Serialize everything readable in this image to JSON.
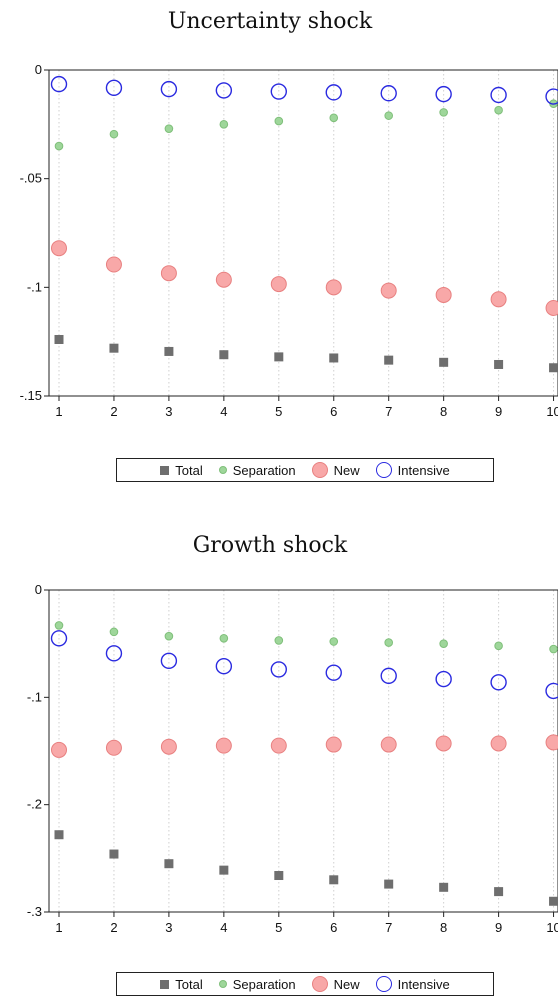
{
  "chart_data": [
    {
      "type": "scatter",
      "title": "Uncertainty shock",
      "xlabel": "",
      "ylabel": "",
      "x": [
        1,
        2,
        3,
        4,
        5,
        6,
        7,
        8,
        9,
        10
      ],
      "xticks": [
        "1",
        "2",
        "3",
        "4",
        "5",
        "6",
        "7",
        "8",
        "9",
        "10"
      ],
      "ylim": [
        -0.15,
        0
      ],
      "yticks": [
        {
          "value": 0,
          "label": "0"
        },
        {
          "value": -0.05,
          "label": "-.05"
        },
        {
          "value": -0.1,
          "label": "-.1"
        },
        {
          "value": -0.15,
          "label": "-.15"
        }
      ],
      "grid": "vertical dotted",
      "legend_position": "bottom",
      "series": [
        {
          "name": "Total",
          "marker": "square",
          "color": "#6e6e6e",
          "values": [
            -0.124,
            -0.128,
            -0.1295,
            -0.131,
            -0.132,
            -0.1325,
            -0.1335,
            -0.1345,
            -0.1355,
            -0.137
          ]
        },
        {
          "name": "Separation",
          "marker": "small-circle",
          "color": "#9ed69a",
          "values": [
            -0.035,
            -0.0295,
            -0.027,
            -0.025,
            -0.0235,
            -0.022,
            -0.021,
            -0.0195,
            -0.0185,
            -0.0155
          ]
        },
        {
          "name": "New",
          "marker": "filled-circle",
          "color": "#f8a8a8",
          "values": [
            -0.082,
            -0.0895,
            -0.0935,
            -0.0965,
            -0.0985,
            -0.1,
            -0.1015,
            -0.1035,
            -0.1055,
            -0.1095
          ]
        },
        {
          "name": "Intensive",
          "marker": "hollow-circle",
          "color": "#2a2ae0",
          "values": [
            -0.0065,
            -0.0082,
            -0.0088,
            -0.0094,
            -0.0099,
            -0.0103,
            -0.0107,
            -0.0111,
            -0.0115,
            -0.0122
          ]
        }
      ]
    },
    {
      "type": "scatter",
      "title": "Growth shock",
      "xlabel": "",
      "ylabel": "",
      "x": [
        1,
        2,
        3,
        4,
        5,
        6,
        7,
        8,
        9,
        10
      ],
      "xticks": [
        "1",
        "2",
        "3",
        "4",
        "5",
        "6",
        "7",
        "8",
        "9",
        "10"
      ],
      "ylim": [
        -0.3,
        0
      ],
      "yticks": [
        {
          "value": 0,
          "label": "0"
        },
        {
          "value": -0.1,
          "label": "-.1"
        },
        {
          "value": -0.2,
          "label": "-.2"
        },
        {
          "value": -0.3,
          "label": "-.3"
        }
      ],
      "grid": "vertical dotted",
      "legend_position": "bottom",
      "series": [
        {
          "name": "Total",
          "marker": "square",
          "color": "#6e6e6e",
          "values": [
            -0.228,
            -0.246,
            -0.255,
            -0.261,
            -0.266,
            -0.27,
            -0.274,
            -0.277,
            -0.281,
            -0.29
          ]
        },
        {
          "name": "Separation",
          "marker": "small-circle",
          "color": "#9ed69a",
          "values": [
            -0.033,
            -0.039,
            -0.043,
            -0.045,
            -0.047,
            -0.048,
            -0.049,
            -0.05,
            -0.052,
            -0.055
          ]
        },
        {
          "name": "New",
          "marker": "filled-circle",
          "color": "#f8a8a8",
          "values": [
            -0.149,
            -0.147,
            -0.146,
            -0.145,
            -0.145,
            -0.144,
            -0.144,
            -0.143,
            -0.143,
            -0.142
          ]
        },
        {
          "name": "Intensive",
          "marker": "hollow-circle",
          "color": "#2a2ae0",
          "values": [
            -0.045,
            -0.059,
            -0.066,
            -0.071,
            -0.074,
            -0.077,
            -0.08,
            -0.083,
            -0.086,
            -0.094
          ]
        }
      ]
    }
  ]
}
